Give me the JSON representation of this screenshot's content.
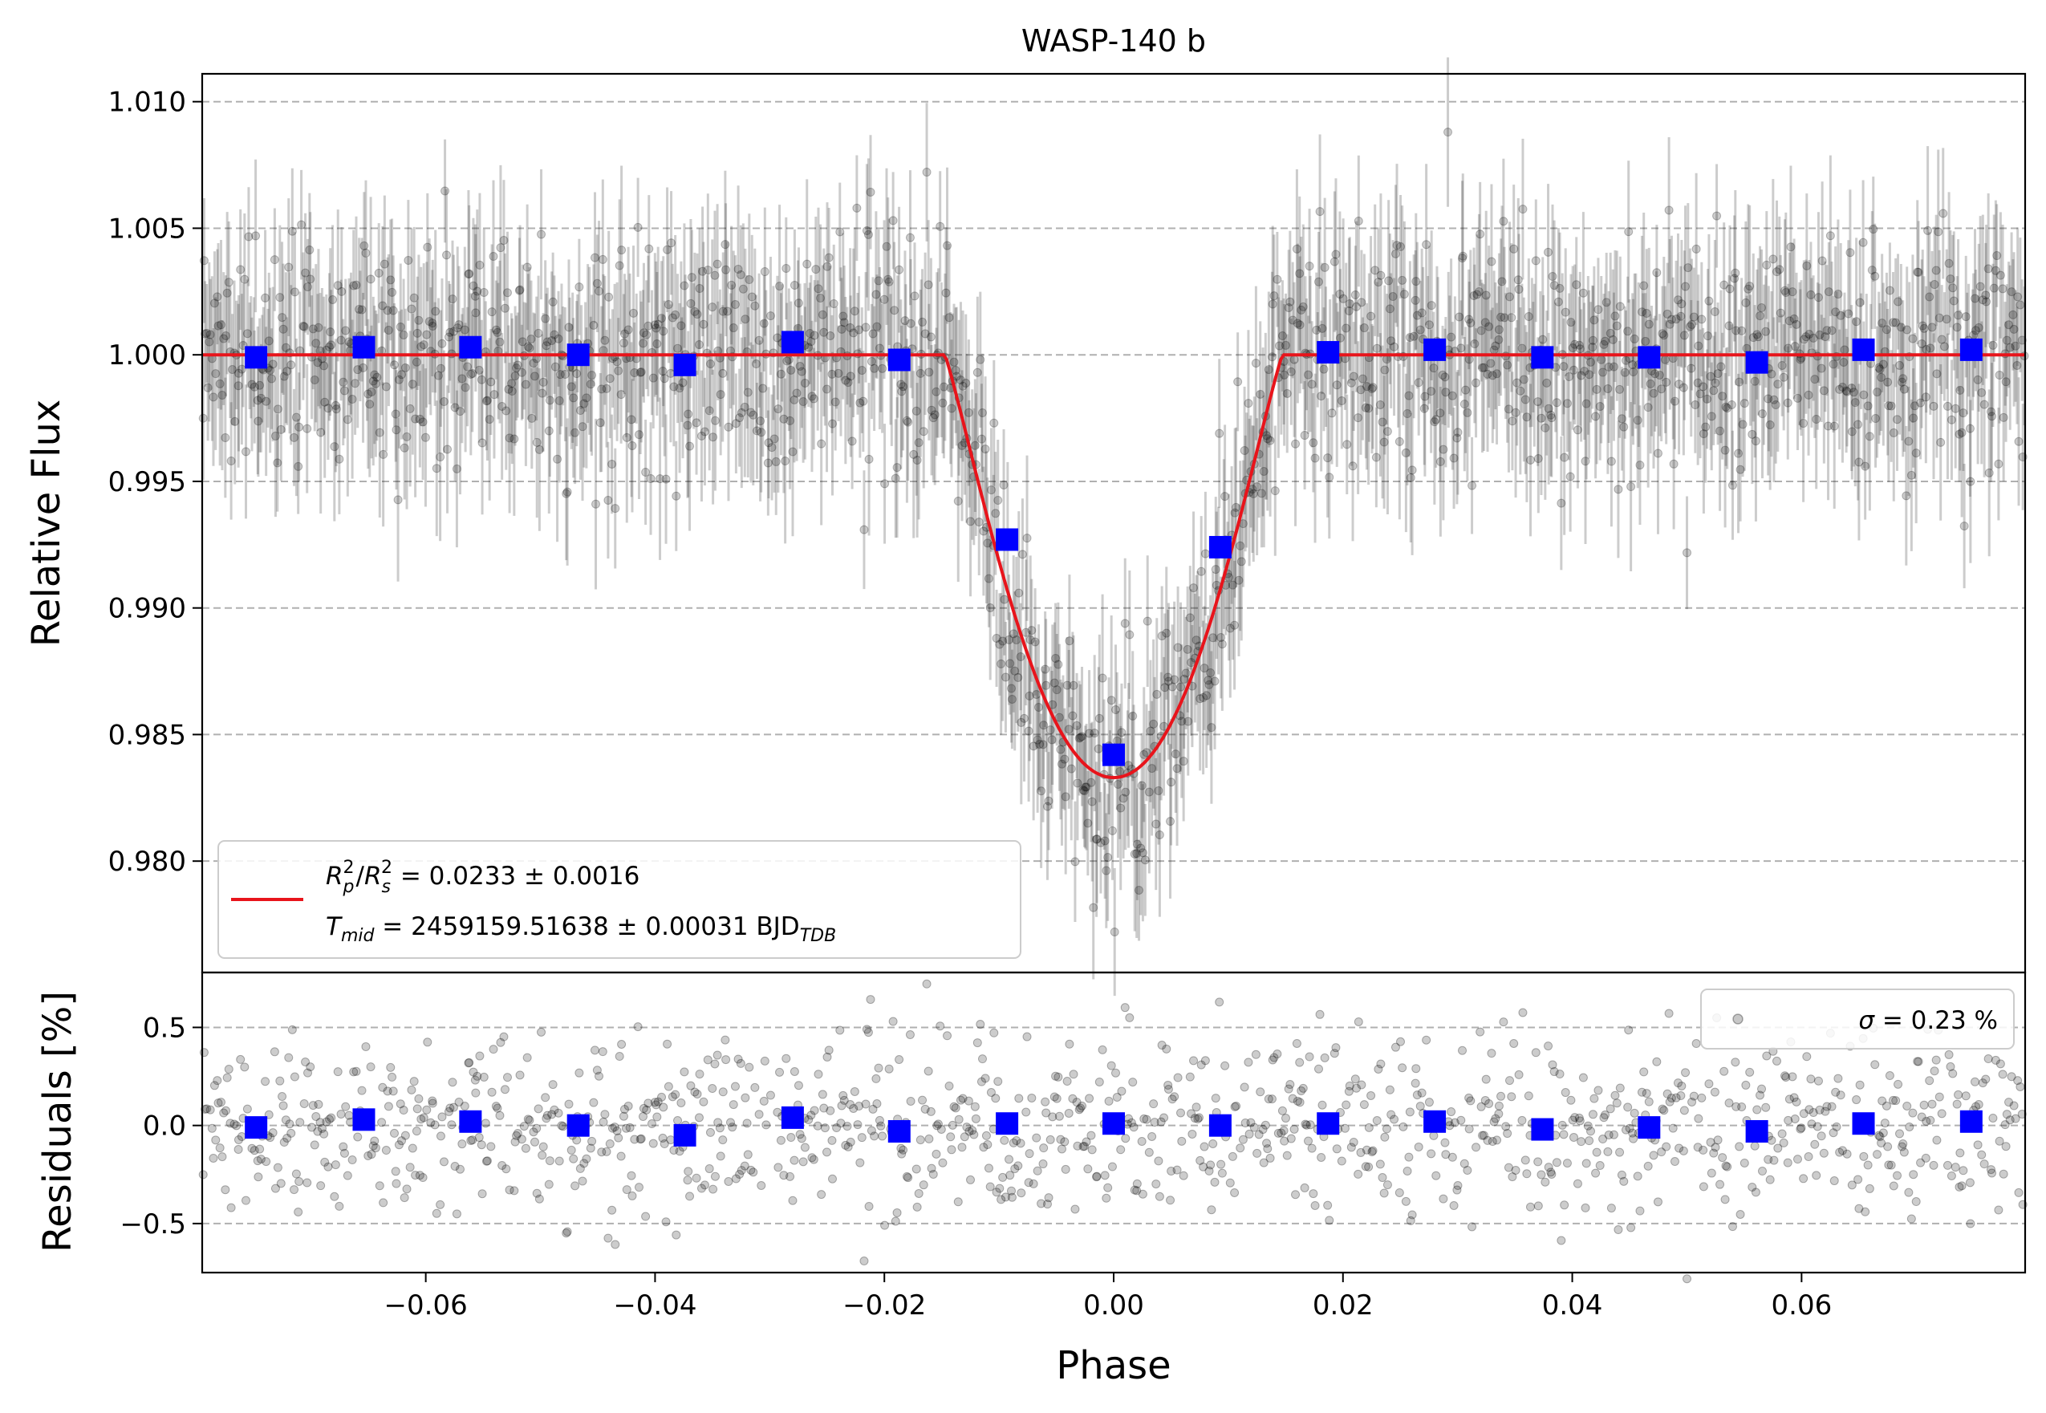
{
  "chart_data": [
    {
      "type": "scatter",
      "panel": "top",
      "title": "WASP-140 b",
      "xlabel": "",
      "ylabel": "Relative Flux",
      "xlim": [
        -0.0795,
        0.0795
      ],
      "ylim": [
        0.9756,
        1.0111
      ],
      "yticks": [
        0.98,
        0.985,
        0.99,
        0.995,
        1.0,
        1.005,
        1.01
      ],
      "ytick_labels": [
        "0.980",
        "0.985",
        "0.990",
        "0.995",
        "1.000",
        "1.005",
        "1.010"
      ],
      "grid": "horizontal dashed",
      "model": {
        "name": "transit model",
        "color": "#e8141b",
        "baseline": 1.0,
        "depth": 0.0167,
        "ingress_phase": -0.0147,
        "egress_phase": 0.0147
      },
      "raw_data": {
        "color": "#000000",
        "typical_flux_scatter": 0.0023,
        "typical_errorbar": 0.0025,
        "n_points": 1400
      },
      "binned": {
        "color": "#0000ff",
        "x": [
          -0.0748,
          -0.0654,
          -0.0561,
          -0.0467,
          -0.0374,
          -0.028,
          -0.0187,
          -0.0093,
          0.0,
          0.0093,
          0.0187,
          0.028,
          0.0374,
          0.0467,
          0.0561,
          0.0654,
          0.0748
        ],
        "y": [
          0.9999,
          1.0003,
          1.0003,
          1.0,
          0.9996,
          1.0005,
          0.9998,
          0.9927,
          0.9842,
          0.9924,
          1.0001,
          1.0002,
          0.9999,
          0.9999,
          0.9997,
          1.0002,
          1.0002
        ]
      },
      "legend": {
        "placement": "lower-left",
        "line1": {
          "r": "R",
          "p": "p",
          "two": "2",
          "slash": "/",
          "s": "s",
          "value": " = 0.0233 ± 0.0016"
        },
        "line2": {
          "t": "T",
          "mid": "mid",
          "value": " = 2459159.51638 ± 0.00031 BJD",
          "tdb": "TDB"
        }
      }
    },
    {
      "type": "scatter",
      "panel": "bottom",
      "xlabel": "Phase",
      "ylabel": "Residuals [%]",
      "xlim": [
        -0.0795,
        0.0795
      ],
      "ylim": [
        -0.75,
        0.78
      ],
      "xticks": [
        -0.06,
        -0.04,
        -0.02,
        0.0,
        0.02,
        0.04,
        0.06
      ],
      "xtick_labels": [
        "−0.06",
        "−0.04",
        "−0.02",
        "0.00",
        "0.02",
        "0.04",
        "0.06"
      ],
      "yticks": [
        -0.5,
        0.0,
        0.5
      ],
      "ytick_labels": [
        "−0.5",
        "0.0",
        "0.5"
      ],
      "grid": "horizontal dashed",
      "residual_scatter_percent": 0.23,
      "binned": {
        "color": "#0000ff",
        "x": [
          -0.0748,
          -0.0654,
          -0.0561,
          -0.0467,
          -0.0374,
          -0.028,
          -0.0187,
          -0.0093,
          0.0,
          0.0093,
          0.0187,
          0.028,
          0.0374,
          0.0467,
          0.0561,
          0.0654,
          0.0748
        ],
        "y": [
          -0.01,
          0.03,
          0.02,
          0.0,
          -0.05,
          0.04,
          -0.03,
          0.01,
          0.01,
          0.0,
          0.01,
          0.02,
          -0.02,
          -0.01,
          -0.03,
          0.01,
          0.02
        ]
      },
      "legend": {
        "placement": "top-right",
        "sigma": "σ",
        "value": " = 0.23 %"
      }
    }
  ]
}
